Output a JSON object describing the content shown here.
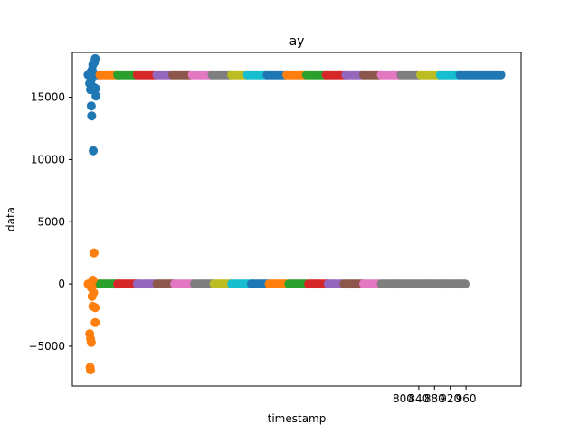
{
  "chart_data": {
    "type": "scatter",
    "title": "ay",
    "xlabel": "timestamp",
    "ylabel": "data",
    "xlim": [
      -40,
      1100
    ],
    "ylim": [
      -8200,
      18600
    ],
    "grid": false,
    "legend": "none",
    "y_ticks": [
      {
        "value": -5000,
        "label": "−5000"
      },
      {
        "value": 0,
        "label": "0"
      },
      {
        "value": 5000,
        "label": "5000"
      },
      {
        "value": 10000,
        "label": "10000"
      },
      {
        "value": 15000,
        "label": "15000"
      }
    ],
    "x_ticks": [
      {
        "value": 800,
        "label": "800"
      },
      {
        "value": 840,
        "label": "840"
      },
      {
        "value": 880,
        "label": "880"
      },
      {
        "value": 920,
        "label": "920"
      },
      {
        "value": 960,
        "label": "960"
      }
    ],
    "palette": [
      "#1f77b4",
      "#ff7f0e",
      "#2ca02c",
      "#d62728",
      "#9467bd",
      "#8c564b",
      "#e377c2",
      "#7f7f7f",
      "#bcbd22",
      "#17becf"
    ],
    "high_band": {
      "y": 16800,
      "x_start": 0,
      "x_end": 1050,
      "segments": [
        {
          "x0": 0,
          "x1": 30,
          "color": "#1f77b4"
        },
        {
          "x0": 30,
          "x1": 75,
          "color": "#ff7f0e"
        },
        {
          "x0": 75,
          "x1": 125,
          "color": "#2ca02c"
        },
        {
          "x0": 125,
          "x1": 175,
          "color": "#d62728"
        },
        {
          "x0": 175,
          "x1": 215,
          "color": "#9467bd"
        },
        {
          "x0": 215,
          "x1": 265,
          "color": "#8c564b"
        },
        {
          "x0": 265,
          "x1": 315,
          "color": "#e377c2"
        },
        {
          "x0": 315,
          "x1": 365,
          "color": "#7f7f7f"
        },
        {
          "x0": 365,
          "x1": 405,
          "color": "#bcbd22"
        },
        {
          "x0": 405,
          "x1": 455,
          "color": "#17becf"
        },
        {
          "x0": 455,
          "x1": 505,
          "color": "#1f77b4"
        },
        {
          "x0": 505,
          "x1": 555,
          "color": "#ff7f0e"
        },
        {
          "x0": 555,
          "x1": 605,
          "color": "#2ca02c"
        },
        {
          "x0": 605,
          "x1": 655,
          "color": "#d62728"
        },
        {
          "x0": 655,
          "x1": 700,
          "color": "#9467bd"
        },
        {
          "x0": 700,
          "x1": 745,
          "color": "#8c564b"
        },
        {
          "x0": 745,
          "x1": 795,
          "color": "#e377c2"
        },
        {
          "x0": 795,
          "x1": 845,
          "color": "#7f7f7f"
        },
        {
          "x0": 845,
          "x1": 895,
          "color": "#bcbd22"
        },
        {
          "x0": 895,
          "x1": 945,
          "color": "#17becf"
        },
        {
          "x0": 945,
          "x1": 1050,
          "color": "#1f77b4"
        }
      ]
    },
    "low_band": {
      "y": 0,
      "x_start": 0,
      "x_end": 960,
      "segments": [
        {
          "x0": 0,
          "x1": 30,
          "color": "#ff7f0e"
        },
        {
          "x0": 30,
          "x1": 75,
          "color": "#2ca02c"
        },
        {
          "x0": 75,
          "x1": 125,
          "color": "#d62728"
        },
        {
          "x0": 125,
          "x1": 175,
          "color": "#9467bd"
        },
        {
          "x0": 175,
          "x1": 220,
          "color": "#8c564b"
        },
        {
          "x0": 220,
          "x1": 270,
          "color": "#e377c2"
        },
        {
          "x0": 270,
          "x1": 320,
          "color": "#7f7f7f"
        },
        {
          "x0": 320,
          "x1": 365,
          "color": "#bcbd22"
        },
        {
          "x0": 365,
          "x1": 415,
          "color": "#17becf"
        },
        {
          "x0": 415,
          "x1": 460,
          "color": "#1f77b4"
        },
        {
          "x0": 460,
          "x1": 510,
          "color": "#ff7f0e"
        },
        {
          "x0": 510,
          "x1": 560,
          "color": "#2ca02c"
        },
        {
          "x0": 560,
          "x1": 610,
          "color": "#d62728"
        },
        {
          "x0": 610,
          "x1": 650,
          "color": "#9467bd"
        },
        {
          "x0": 650,
          "x1": 700,
          "color": "#8c564b"
        },
        {
          "x0": 700,
          "x1": 745,
          "color": "#e377c2"
        },
        {
          "x0": 745,
          "x1": 960,
          "color": "#7f7f7f"
        }
      ]
    },
    "outliers": [
      {
        "x": 12,
        "y": 17600,
        "color": "#1f77b4"
      },
      {
        "x": 18,
        "y": 18100,
        "color": "#1f77b4"
      },
      {
        "x": 16,
        "y": 17800,
        "color": "#1f77b4"
      },
      {
        "x": 10,
        "y": 17200,
        "color": "#1f77b4"
      },
      {
        "x": 6,
        "y": 17000,
        "color": "#1f77b4"
      },
      {
        "x": 8,
        "y": 16400,
        "color": "#1f77b4"
      },
      {
        "x": 4,
        "y": 16100,
        "color": "#1f77b4"
      },
      {
        "x": 6,
        "y": 15600,
        "color": "#1f77b4"
      },
      {
        "x": 14,
        "y": 15800,
        "color": "#1f77b4"
      },
      {
        "x": 19,
        "y": 15700,
        "color": "#1f77b4"
      },
      {
        "x": 20,
        "y": 15100,
        "color": "#1f77b4"
      },
      {
        "x": 8,
        "y": 14300,
        "color": "#1f77b4"
      },
      {
        "x": 9,
        "y": 13500,
        "color": "#1f77b4"
      },
      {
        "x": 13,
        "y": 10700,
        "color": "#1f77b4"
      },
      {
        "x": 15,
        "y": 2500,
        "color": "#ff7f0e"
      },
      {
        "x": 12,
        "y": 300,
        "color": "#ff7f0e"
      },
      {
        "x": 8,
        "y": -300,
        "color": "#ff7f0e"
      },
      {
        "x": 14,
        "y": -700,
        "color": "#ff7f0e"
      },
      {
        "x": 10,
        "y": -1000,
        "color": "#ff7f0e"
      },
      {
        "x": 12,
        "y": -1800,
        "color": "#ff7f0e"
      },
      {
        "x": 18,
        "y": -1900,
        "color": "#ff7f0e"
      },
      {
        "x": 18,
        "y": -3100,
        "color": "#ff7f0e"
      },
      {
        "x": 4,
        "y": -4000,
        "color": "#ff7f0e"
      },
      {
        "x": 6,
        "y": -4400,
        "color": "#ff7f0e"
      },
      {
        "x": 8,
        "y": -4700,
        "color": "#ff7f0e"
      },
      {
        "x": 5,
        "y": -6700,
        "color": "#ff7f0e"
      },
      {
        "x": 6,
        "y": -6900,
        "color": "#ff7f0e"
      }
    ]
  }
}
